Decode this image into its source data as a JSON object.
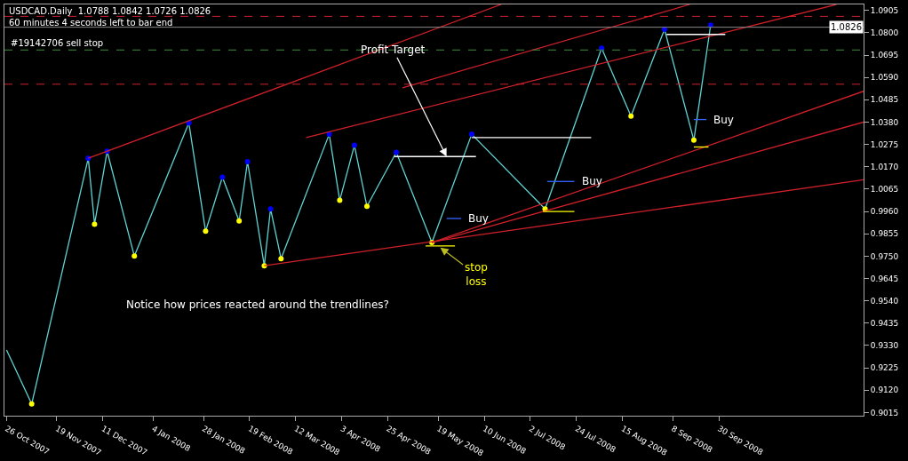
{
  "chart_data": {
    "type": "line",
    "title": "USDCAD.Daily  1.0788 1.0842 1.0726 1.0826",
    "subtitle": "60 minutes 4 seconds left to bar end",
    "xlim": [
      "2007-10-25",
      "2008-12-08"
    ],
    "xticks": [
      {
        "value": "2007-10-26",
        "label": "26 Oct 2007"
      },
      {
        "value": "2007-11-19",
        "label": "19 Nov 2007"
      },
      {
        "value": "2007-12-11",
        "label": "11 Dec 2007"
      },
      {
        "value": "2008-01-04",
        "label": "4 Jan 2008"
      },
      {
        "value": "2008-01-28",
        "label": "28 Jan 2008"
      },
      {
        "value": "2008-02-19",
        "label": "19 Feb 2008"
      },
      {
        "value": "2008-03-12",
        "label": "12 Mar 2008"
      },
      {
        "value": "2008-04-03",
        "label": "3 Apr 2008"
      },
      {
        "value": "2008-04-25",
        "label": "25 Apr 2008"
      },
      {
        "value": "2008-05-19",
        "label": "19 May 2008"
      },
      {
        "value": "2008-06-10",
        "label": "10 Jun 2008"
      },
      {
        "value": "2008-07-02",
        "label": "2 Jul 2008"
      },
      {
        "value": "2008-07-24",
        "label": "24 Jul 2008"
      },
      {
        "value": "2008-08-15",
        "label": "15 Aug 2008"
      },
      {
        "value": "2008-09-08",
        "label": "8 Sep 2008"
      },
      {
        "value": "2008-09-30",
        "label": "30 Sep 2008"
      }
    ],
    "ylim": [
      0.9,
      1.0933
    ],
    "yticks": [
      0.9015,
      {
        "value": 0.912,
        "label": "0.9120"
      },
      0.9225,
      {
        "value": 0.933,
        "label": "0.9330"
      },
      0.9435,
      {
        "value": 0.954,
        "label": "0.9540"
      },
      0.9645,
      {
        "value": 0.975,
        "label": "0.9750"
      },
      0.9855,
      {
        "value": 0.996,
        "label": "0.9960"
      },
      1.0065,
      {
        "value": 1.017,
        "label": "1.0170"
      },
      1.0275,
      {
        "value": 1.038,
        "label": "1.0380"
      },
      1.0485,
      {
        "value": 1.059,
        "label": "1.0590"
      },
      1.0695,
      {
        "value": 1.08,
        "label": "1.0800"
      },
      1.0905
    ],
    "grid": false,
    "series": [
      {
        "color": "#5fd3d3",
        "marker": "circle",
        "x": [
          "2007-10-26",
          "2007-11-07",
          "2007-12-04",
          "2007-12-07",
          "2007-12-13",
          "2007-12-26",
          "2008-01-21",
          "2008-01-29",
          "2008-02-06",
          "2008-02-14",
          "2008-02-18",
          "2008-02-26",
          "2008-02-29",
          "2008-03-05",
          "2008-03-28",
          "2008-04-02",
          "2008-04-09",
          "2008-04-15",
          "2008-04-29",
          "2008-05-16",
          "2008-06-04",
          "2008-07-09",
          "2008-08-05",
          "2008-08-19",
          "2008-09-04",
          "2008-09-18",
          "2008-09-26"
        ],
        "values": [
          0.9309,
          0.9055,
          1.021,
          0.99,
          1.0243,
          0.975,
          1.0376,
          0.9867,
          1.0121,
          0.9915,
          1.0194,
          0.9705,
          0.9972,
          0.9738,
          1.0323,
          1.0012,
          1.0271,
          0.9984,
          1.0238,
          0.9814,
          1.0323,
          0.9972,
          1.0727,
          1.0408,
          1.0816,
          1.0295,
          1.0836
        ],
        "colors": [
          null,
          "#ffff00",
          "#0000ff",
          "#ffff00",
          "#0000ff",
          "#ffff00",
          "#0000ff",
          "#ffff00",
          "#0000ff",
          "#ffff00",
          "#0000ff",
          "#ffff00",
          "#0000ff",
          "#ffff00",
          "#0000ff",
          "#ffff00",
          "#0000ff",
          "#ffff00",
          "#0000ff",
          "#ffff00",
          "#0000ff",
          "#ffff00",
          "#0000ff",
          "#ffff00",
          "#0000ff",
          "#ffff00",
          "#0000ff"
        ]
      },
      {
        "color": "#d0202a",
        "x": [
          "2007-12-04",
          "2008-06-18"
        ],
        "values": [
          1.021,
          1.0933
        ]
      },
      {
        "color": "#d0202a",
        "x": [
          "2008-03-17",
          "2008-11-25"
        ],
        "values": [
          1.0307,
          1.0933
        ]
      },
      {
        "color": "#d0202a",
        "x": [
          "2008-05-02",
          "2008-09-16"
        ],
        "values": [
          1.0541,
          1.0933
        ]
      },
      {
        "color": "#d0202a",
        "x": [
          "2008-02-26",
          "2008-12-08"
        ],
        "values": [
          0.9705,
          1.0109
        ]
      },
      {
        "color": "#d0202a",
        "x": [
          "2008-05-16",
          "2008-12-08"
        ],
        "values": [
          0.9814,
          1.038
        ]
      },
      {
        "color": "#d0202a",
        "x": [
          "2008-05-16",
          "2008-12-08"
        ],
        "values": [
          0.9814,
          1.0525
        ]
      },
      {
        "color": "#ffffff",
        "x": [
          "2008-04-28",
          "2008-06-06"
        ],
        "values": [
          1.0218,
          1.0218
        ]
      },
      {
        "color": "#ffffff",
        "x": [
          "2008-06-04",
          "2008-07-31"
        ],
        "values": [
          1.0307,
          1.0307
        ]
      },
      {
        "color": "#ffffff",
        "x": [
          "2008-09-05",
          "2008-10-03"
        ],
        "values": [
          1.0792,
          1.0792
        ]
      },
      {
        "color": "#3366ff",
        "x": [
          "2008-05-23",
          "2008-05-30"
        ],
        "values": [
          0.9927,
          0.9927
        ]
      },
      {
        "color": "#3366ff",
        "x": [
          "2008-07-10",
          "2008-07-23"
        ],
        "values": [
          1.0101,
          1.0101
        ]
      },
      {
        "color": "#3366ff",
        "x": [
          "2008-09-18",
          "2008-09-24"
        ],
        "values": [
          1.0392,
          1.0392
        ]
      },
      {
        "color": "#ffff00",
        "x": [
          "2008-05-13",
          "2008-05-27"
        ],
        "values": [
          0.9798,
          0.9798
        ]
      },
      {
        "color": "#ffff00",
        "x": [
          "2008-07-08",
          "2008-07-23"
        ],
        "values": [
          0.996,
          0.996
        ]
      },
      {
        "color": "#ffff00",
        "x": [
          "2008-09-18",
          "2008-09-25"
        ],
        "values": [
          1.0263,
          1.0263
        ]
      }
    ],
    "ref_lines": [
      {
        "axis": "y",
        "value": 1.0877,
        "color": "#d0202a",
        "line_style": "dashed"
      },
      {
        "axis": "y",
        "value": 1.0719,
        "color": "#3c8c3c",
        "line_style": "dashed",
        "label": "#19142706 sell stop"
      },
      {
        "axis": "y",
        "value": 1.0558,
        "color": "#d0202a",
        "line_style": "dashed"
      },
      {
        "axis": "y",
        "value": 1.0826,
        "color": "#888888",
        "line_style": "solid",
        "label": "1.0826"
      }
    ],
    "annotations": [
      {
        "text": "Profit Target",
        "x": "2008-05-23",
        "y": 1.0218
      },
      {
        "text": "Buy",
        "x": "2008-05-30",
        "y": 0.9927
      },
      {
        "text": "Buy",
        "x": "2008-07-23",
        "y": 1.0101
      },
      {
        "text": "Buy",
        "x": "2008-09-24",
        "y": 1.0392
      },
      {
        "text": "stop\nloss",
        "x": "2008-05-20",
        "y": 0.979
      },
      "Notice how prices reacted around the trendlines?"
    ]
  }
}
